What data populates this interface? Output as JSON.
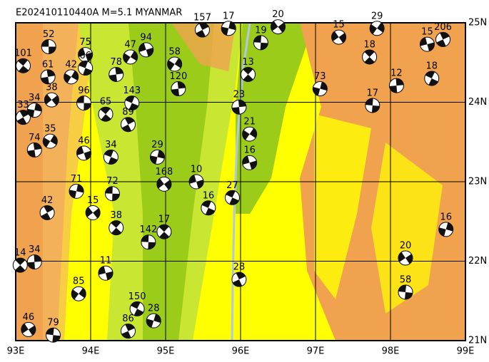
{
  "map": {
    "title": "E202410110440A M=5.1 MYANMAR",
    "xlim": [
      93,
      99
    ],
    "ylim": [
      21,
      25
    ],
    "xticks": [
      {
        "value": 93,
        "label": "93E"
      },
      {
        "value": 94,
        "label": "94E"
      },
      {
        "value": 95,
        "label": "95E"
      },
      {
        "value": 96,
        "label": "96E"
      },
      {
        "value": 97,
        "label": "97E"
      },
      {
        "value": 98,
        "label": "98E"
      },
      {
        "value": 99,
        "label": "99E"
      }
    ],
    "yticks": [
      {
        "value": 21,
        "label": "21N"
      },
      {
        "value": 22,
        "label": "22N"
      },
      {
        "value": 23,
        "label": "23N"
      },
      {
        "value": 24,
        "label": "24N"
      },
      {
        "value": 25,
        "label": "25N"
      }
    ],
    "grid": true,
    "events": [
      {
        "lon": 93.44,
        "lat": 24.7,
        "label": "52"
      },
      {
        "lon": 93.1,
        "lat": 24.46,
        "label": "101"
      },
      {
        "lon": 93.43,
        "lat": 24.32,
        "label": "61"
      },
      {
        "lon": 93.74,
        "lat": 24.32,
        "label": "42"
      },
      {
        "lon": 93.93,
        "lat": 24.6,
        "label": "75"
      },
      {
        "lon": 93.93,
        "lat": 24.43,
        "label": "66"
      },
      {
        "lon": 93.1,
        "lat": 23.81,
        "label": "33"
      },
      {
        "lon": 93.25,
        "lat": 23.9,
        "label": "34"
      },
      {
        "lon": 93.48,
        "lat": 24.03,
        "label": "38"
      },
      {
        "lon": 93.91,
        "lat": 23.99,
        "label": "96"
      },
      {
        "lon": 94.2,
        "lat": 23.85,
        "label": "65"
      },
      {
        "lon": 93.25,
        "lat": 23.4,
        "label": "74"
      },
      {
        "lon": 93.46,
        "lat": 23.51,
        "label": "35"
      },
      {
        "lon": 93.91,
        "lat": 23.36,
        "label": "46"
      },
      {
        "lon": 94.27,
        "lat": 23.31,
        "label": "34"
      },
      {
        "lon": 93.42,
        "lat": 22.61,
        "label": "42"
      },
      {
        "lon": 93.81,
        "lat": 22.88,
        "label": "71"
      },
      {
        "lon": 94.03,
        "lat": 22.61,
        "label": "15"
      },
      {
        "lon": 94.29,
        "lat": 22.85,
        "label": "72"
      },
      {
        "lon": 94.34,
        "lat": 22.42,
        "label": "38"
      },
      {
        "lon": 94.34,
        "lat": 24.35,
        "label": "78"
      },
      {
        "lon": 94.53,
        "lat": 24.57,
        "label": "47"
      },
      {
        "lon": 94.74,
        "lat": 24.66,
        "label": "94"
      },
      {
        "lon": 94.55,
        "lat": 23.99,
        "label": "143"
      },
      {
        "lon": 94.5,
        "lat": 23.72,
        "label": "89"
      },
      {
        "lon": 94.89,
        "lat": 23.31,
        "label": "29"
      },
      {
        "lon": 94.98,
        "lat": 22.97,
        "label": "168"
      },
      {
        "lon": 94.77,
        "lat": 22.24,
        "label": "142"
      },
      {
        "lon": 94.98,
        "lat": 22.37,
        "label": "17"
      },
      {
        "lon": 95.17,
        "lat": 24.17,
        "label": "120"
      },
      {
        "lon": 95.12,
        "lat": 24.48,
        "label": "58"
      },
      {
        "lon": 95.41,
        "lat": 23.0,
        "label": "10"
      },
      {
        "lon": 95.57,
        "lat": 22.67,
        "label": "16"
      },
      {
        "lon": 95.49,
        "lat": 24.91,
        "label": "157"
      },
      {
        "lon": 95.84,
        "lat": 24.93,
        "label": "17"
      },
      {
        "lon": 96.5,
        "lat": 24.95,
        "label": "20"
      },
      {
        "lon": 96.27,
        "lat": 24.75,
        "label": "19"
      },
      {
        "lon": 96.1,
        "lat": 24.35,
        "label": "13"
      },
      {
        "lon": 95.98,
        "lat": 23.94,
        "label": "23"
      },
      {
        "lon": 96.12,
        "lat": 23.6,
        "label": "21"
      },
      {
        "lon": 96.12,
        "lat": 23.24,
        "label": "16"
      },
      {
        "lon": 95.89,
        "lat": 22.8,
        "label": "27"
      },
      {
        "lon": 95.98,
        "lat": 21.77,
        "label": "28"
      },
      {
        "lon": 97.06,
        "lat": 24.17,
        "label": "73"
      },
      {
        "lon": 97.31,
        "lat": 24.82,
        "label": "15"
      },
      {
        "lon": 97.76,
        "lat": 23.96,
        "label": "17"
      },
      {
        "lon": 97.72,
        "lat": 24.57,
        "label": "18"
      },
      {
        "lon": 98.08,
        "lat": 24.21,
        "label": "12"
      },
      {
        "lon": 97.82,
        "lat": 24.93,
        "label": "29"
      },
      {
        "lon": 98.49,
        "lat": 24.73,
        "label": "15"
      },
      {
        "lon": 98.55,
        "lat": 24.3,
        "label": "18"
      },
      {
        "lon": 98.7,
        "lat": 24.79,
        "label": "206"
      },
      {
        "lon": 98.74,
        "lat": 22.4,
        "label": "16"
      },
      {
        "lon": 98.2,
        "lat": 22.04,
        "label": "20"
      },
      {
        "lon": 98.2,
        "lat": 21.61,
        "label": "58"
      },
      {
        "lon": 93.06,
        "lat": 21.95,
        "label": "14"
      },
      {
        "lon": 93.25,
        "lat": 21.99,
        "label": "34"
      },
      {
        "lon": 93.84,
        "lat": 21.59,
        "label": "85"
      },
      {
        "lon": 94.2,
        "lat": 21.85,
        "label": "11"
      },
      {
        "lon": 94.62,
        "lat": 21.4,
        "label": "150"
      },
      {
        "lon": 94.5,
        "lat": 21.12,
        "label": "86"
      },
      {
        "lon": 94.84,
        "lat": 21.25,
        "label": "28"
      },
      {
        "lon": 93.17,
        "lat": 21.14,
        "label": "46"
      },
      {
        "lon": 93.5,
        "lat": 21.07,
        "label": "79"
      }
    ]
  }
}
